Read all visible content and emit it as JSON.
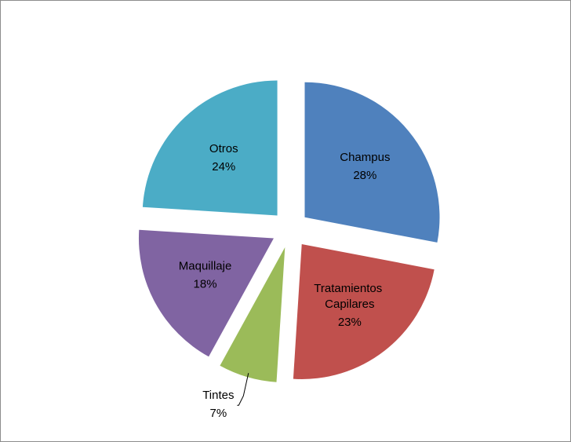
{
  "chart_data": {
    "type": "pie",
    "categories": [
      "Champus",
      "Tratamientos Capilares",
      "Tintes",
      "Maquillaje",
      "Otros"
    ],
    "values": [
      28,
      23,
      7,
      18,
      24
    ],
    "value_labels": [
      "28%",
      "23%",
      "7%",
      "18%",
      "24%"
    ],
    "colors": [
      "#4f81bd",
      "#c0504d",
      "#9bbb59",
      "#8064a2",
      "#4bacc6"
    ],
    "exploded": true
  }
}
